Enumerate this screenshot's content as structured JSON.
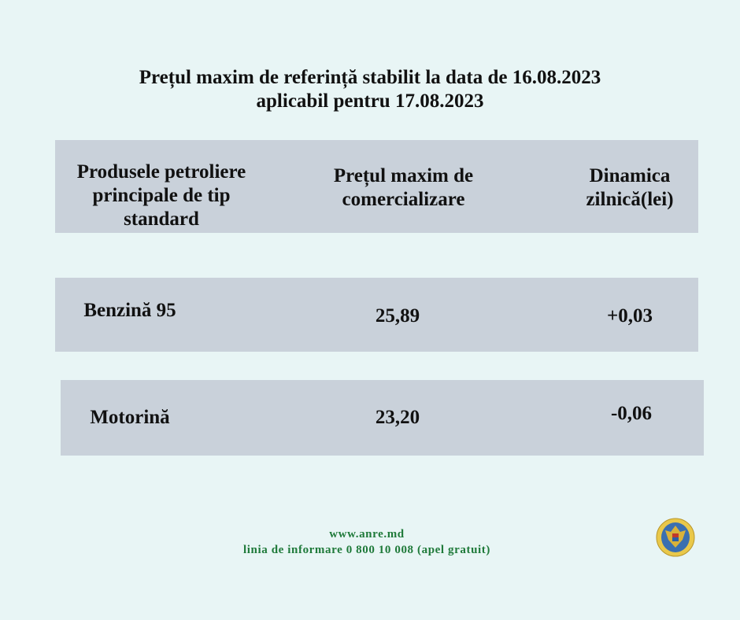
{
  "title": {
    "line1": "Prețul maxim de referință stabilit la data de 16.08.2023",
    "line2": "aplicabil pentru 17.08.2023"
  },
  "table": {
    "headers": [
      "Produsele petroliere principale de tip standard",
      "Prețul maxim de comercializare",
      "Dinamica zilnică(lei)"
    ],
    "rows": [
      {
        "product": "Benzină 95",
        "price": "25,89",
        "change": "+0,03"
      },
      {
        "product": "Motorină",
        "price": "23,20",
        "change": "-0,06"
      }
    ]
  },
  "footer": {
    "website": "www.anre.md",
    "hotline": "linia de informare 0 800 10 008 (apel gratuit)"
  },
  "colors": {
    "background": "#e8f5f5",
    "band": "#c9d1da",
    "footer_text": "#1f7a3a"
  },
  "logo": {
    "icon": "moldova-coat-of-arms-emblem"
  }
}
